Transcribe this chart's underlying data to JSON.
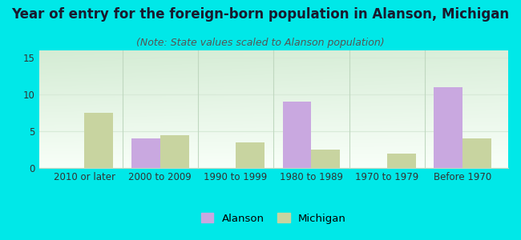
{
  "title": "Year of entry for the foreign-born population in Alanson, Michigan",
  "subtitle": "(Note: State values scaled to Alanson population)",
  "categories": [
    "2010 or later",
    "2000 to 2009",
    "1990 to 1999",
    "1980 to 1989",
    "1970 to 1979",
    "Before 1970"
  ],
  "alanson_values": [
    0,
    4,
    0,
    9,
    0,
    11
  ],
  "michigan_values": [
    7.5,
    4.5,
    3.5,
    2.5,
    2,
    4
  ],
  "alanson_color": "#c9a8e0",
  "michigan_color": "#c8d4a0",
  "background_color": "#00e8e8",
  "plot_bg_top_left": "#d4ecd4",
  "plot_bg_top_right": "#e8f4e8",
  "plot_bg_bottom": "#f5fff5",
  "ylim": [
    0,
    16
  ],
  "yticks": [
    0,
    5,
    10,
    15
  ],
  "bar_width": 0.38,
  "legend_labels": [
    "Alanson",
    "Michigan"
  ],
  "title_fontsize": 12,
  "subtitle_fontsize": 9,
  "tick_fontsize": 8.5,
  "grid_color": "#d8ead8",
  "divider_color": "#c0d8c0"
}
